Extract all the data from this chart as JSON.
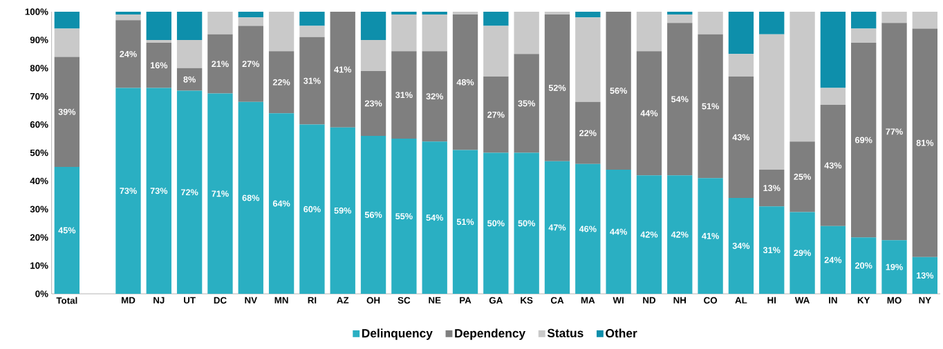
{
  "chart_data": {
    "type": "bar",
    "stacked": true,
    "categories": [
      "Total",
      null,
      "MD",
      "NJ",
      "UT",
      "DC",
      "NV",
      "MN",
      "RI",
      "AZ",
      "OH",
      "SC",
      "NE",
      "PA",
      "GA",
      "KS",
      "CA",
      "MA",
      "WI",
      "ND",
      "NH",
      "CO",
      "AL",
      "HI",
      "WA",
      "IN",
      "KY",
      "MO",
      "NY"
    ],
    "series": [
      {
        "name": "Delinquency",
        "color": "#2aafc2",
        "values": [
          45,
          null,
          73,
          73,
          72,
          71,
          68,
          64,
          60,
          59,
          56,
          55,
          54,
          51,
          50,
          50,
          47,
          46,
          44,
          42,
          42,
          41,
          34,
          31,
          29,
          24,
          20,
          19,
          13
        ],
        "value_labels": [
          "45%",
          null,
          "73%",
          "73%",
          "72%",
          "71%",
          "68%",
          "64%",
          "60%",
          "59%",
          "56%",
          "55%",
          "54%",
          "51%",
          "50%",
          "50%",
          "47%",
          "46%",
          "44%",
          "42%",
          "42%",
          "41%",
          "34%",
          "31%",
          "29%",
          "24%",
          "20%",
          "19%",
          "13%"
        ]
      },
      {
        "name": "Dependency",
        "color": "#7f7f7f",
        "values": [
          39,
          null,
          24,
          16,
          8,
          21,
          27,
          22,
          31,
          41,
          23,
          31,
          32,
          48,
          27,
          35,
          52,
          22,
          56,
          44,
          54,
          51,
          43,
          13,
          25,
          43,
          69,
          77,
          81
        ],
        "value_labels": [
          "39%",
          null,
          "24%",
          "16%",
          "8%",
          "21%",
          "27%",
          "22%",
          "31%",
          "41%",
          "23%",
          "31%",
          "32%",
          "48%",
          "27%",
          "35%",
          "52%",
          "22%",
          "56%",
          "44%",
          "54%",
          "51%",
          "43%",
          "13%",
          "25%",
          "43%",
          "69%",
          "77%",
          "81%"
        ]
      },
      {
        "name": "Status",
        "color": "#c9c9c9",
        "values": [
          10,
          null,
          2,
          1,
          10,
          8,
          3,
          14,
          4,
          0,
          11,
          13,
          13,
          1,
          18,
          15,
          1,
          30,
          0,
          14,
          3,
          8,
          8,
          48,
          46,
          6,
          5,
          4,
          6
        ]
      },
      {
        "name": "Other",
        "color": "#0e8fab",
        "values": [
          6,
          null,
          1,
          10,
          10,
          0,
          2,
          0,
          5,
          0,
          10,
          1,
          1,
          0,
          5,
          0,
          0,
          2,
          0,
          0,
          1,
          0,
          15,
          8,
          0,
          27,
          6,
          0,
          0
        ]
      }
    ],
    "ylim": [
      0,
      100
    ],
    "yticks": [
      {
        "value": 0,
        "label": "0%"
      },
      {
        "value": 10,
        "label": "10%"
      },
      {
        "value": 20,
        "label": "20%"
      },
      {
        "value": 30,
        "label": "30%"
      },
      {
        "value": 40,
        "label": "40%"
      },
      {
        "value": 50,
        "label": "50%"
      },
      {
        "value": 60,
        "label": "60%"
      },
      {
        "value": 70,
        "label": "70%"
      },
      {
        "value": 80,
        "label": "80%"
      },
      {
        "value": 90,
        "label": "90%"
      },
      {
        "value": 100,
        "label": "100%"
      }
    ],
    "legend": "bottom"
  }
}
